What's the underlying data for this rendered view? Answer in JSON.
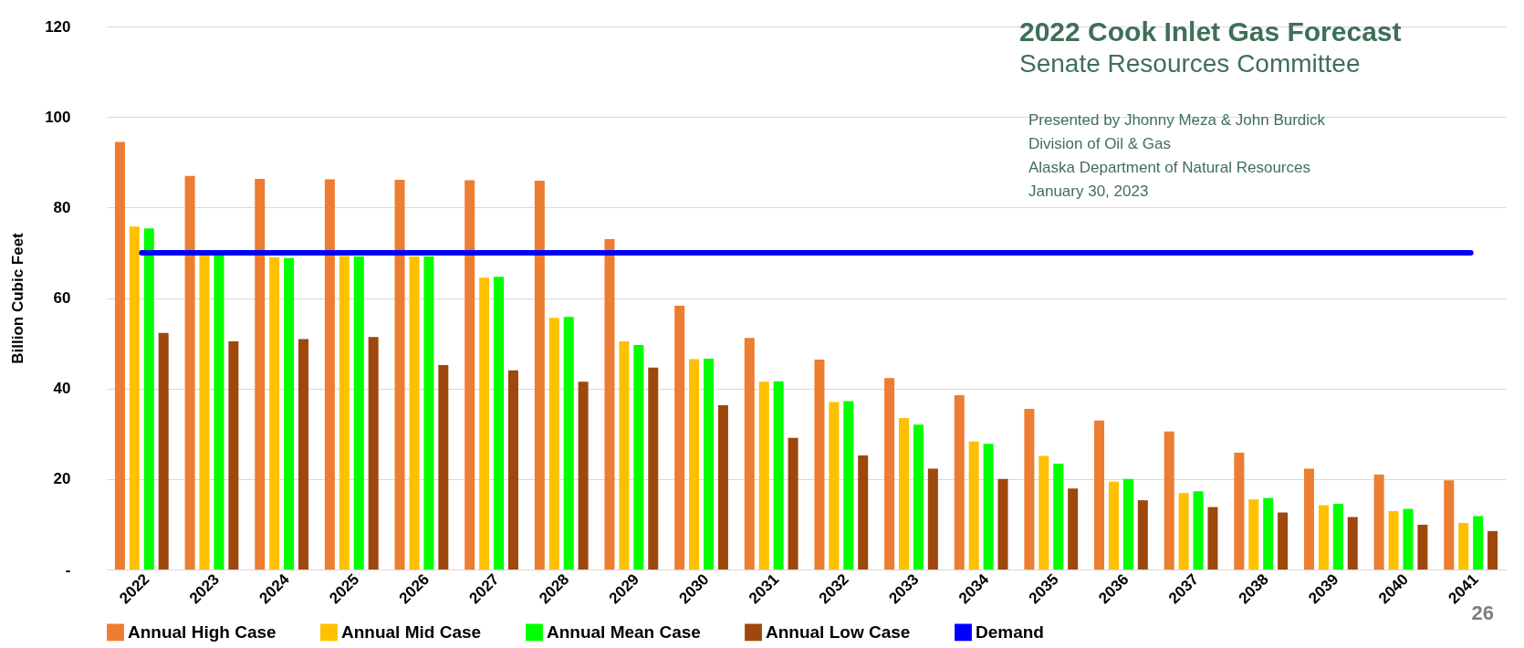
{
  "chart_data": {
    "type": "bar",
    "title": "2022 Cook Inlet Gas Forecast",
    "subtitle": "Senate Resources Committee",
    "ylabel": "Billion Cubic Feet",
    "categories": [
      "2022",
      "2023",
      "2024",
      "2025",
      "2026",
      "2027",
      "2028",
      "2029",
      "2030",
      "2031",
      "2032",
      "2033",
      "2034",
      "2035",
      "2036",
      "2037",
      "2038",
      "2039",
      "2040",
      "2041"
    ],
    "series": [
      {
        "name": "Annual High Case",
        "color": "#ed7d31",
        "values": [
          94.5,
          87,
          86.3,
          86.2,
          86.1,
          86,
          85.9,
          73,
          58.3,
          51.2,
          46.4,
          42.3,
          38.5,
          35.5,
          32.9,
          30.5,
          25.8,
          22.3,
          21,
          19.7
        ]
      },
      {
        "name": "Annual Mid Case",
        "color": "#ffc000",
        "values": [
          75.8,
          69.5,
          69,
          69.3,
          69.2,
          64.5,
          55.6,
          50.4,
          46.5,
          41.5,
          37,
          33.5,
          28.3,
          25.1,
          19.4,
          16.9,
          15.5,
          14.2,
          12.9,
          10.3
        ]
      },
      {
        "name": "Annual Mean Case",
        "color": "#00ff00",
        "values": [
          75.4,
          69.5,
          68.8,
          69.2,
          69.2,
          64.7,
          55.8,
          49.6,
          46.6,
          41.6,
          37.2,
          32,
          27.8,
          23.4,
          20,
          17.3,
          15.8,
          14.5,
          13.4,
          11.8
        ]
      },
      {
        "name": "Annual Low Case",
        "color": "#9e480e",
        "values": [
          52.3,
          50.4,
          50.9,
          51.4,
          45.2,
          44,
          41.5,
          44.6,
          36.3,
          29.1,
          25.2,
          22.3,
          20,
          17.9,
          15.3,
          13.8,
          12.6,
          11.6,
          9.9,
          8.5
        ]
      },
      {
        "name": "Demand",
        "type": "line",
        "color": "#0000ff",
        "values": [
          70,
          70,
          70,
          70,
          70,
          70,
          70,
          70,
          70,
          70,
          70,
          70,
          70,
          70,
          70,
          70,
          70,
          70,
          70,
          70
        ]
      }
    ],
    "ylim": [
      0,
      120
    ],
    "yticks": [
      {
        "value": 0,
        "label": "-"
      },
      20,
      40,
      60,
      80,
      100,
      120
    ],
    "grid": "y",
    "legend": "bottom",
    "annotations": [
      "Presented by Jhonny Meza & John Burdick",
      "Division of Oil & Gas",
      "Alaska Department of Natural Resources",
      "January 30, 2023",
      "26"
    ]
  }
}
